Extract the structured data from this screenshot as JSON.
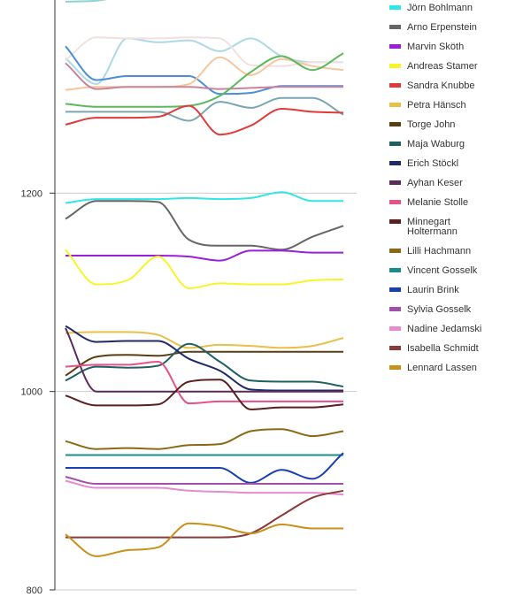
{
  "chart_data": {
    "type": "line",
    "title": "",
    "xlabel": "",
    "ylabel": "",
    "x": [
      0,
      1,
      2,
      3,
      4,
      5,
      6,
      7,
      8,
      9
    ],
    "ylim": [
      800,
      1400
    ],
    "yticks": [
      800,
      1000,
      1200
    ],
    "grid": true,
    "legend_position": "right",
    "smooth": true,
    "series": [
      {
        "name": "",
        "color": "#8fd3d3",
        "values": [
          1393,
          1394,
          1398,
          1397,
          1399,
          1400,
          1400,
          1401,
          1400,
          1400
        ]
      },
      {
        "name": "",
        "color": "#add8e6",
        "values": [
          1336,
          1310,
          1356,
          1352,
          1354,
          1343,
          1356,
          1338,
          1332,
          1332
        ]
      },
      {
        "name": "",
        "color": "#f0e0e0",
        "values": [
          1334,
          1357,
          1356,
          1356,
          1357,
          1356,
          1329,
          1328,
          1332,
          1332
        ]
      },
      {
        "name": "",
        "color": "#4a8fd6",
        "values": [
          1348,
          1314,
          1318,
          1318,
          1318,
          1300,
          1301,
          1308,
          1308,
          1308
        ]
      },
      {
        "name": "",
        "color": "#f5c6a0",
        "values": [
          1304,
          1307,
          1307,
          1307,
          1310,
          1337,
          1319,
          1335,
          1328,
          1324
        ]
      },
      {
        "name": "",
        "color": "#c9839b",
        "values": [
          1331,
          1305,
          1307,
          1307,
          1307,
          1305,
          1306,
          1307,
          1307,
          1307
        ]
      },
      {
        "name": "",
        "color": "#5cb85c",
        "values": [
          1290,
          1287,
          1287,
          1287,
          1288,
          1298,
          1322,
          1338,
          1324,
          1341
        ]
      },
      {
        "name": "",
        "color": "#7aa6b0",
        "values": [
          1282,
          1282,
          1282,
          1282,
          1273,
          1292,
          1286,
          1296,
          1296,
          1279
        ]
      },
      {
        "name": "Jörn Bohlmann",
        "color": "#33e6e6",
        "values": [
          1190,
          1194,
          1194,
          1194,
          1195,
          1194,
          1195,
          1201,
          1192,
          1192
        ]
      },
      {
        "name": "Arno Erpenstein",
        "color": "#666666",
        "values": [
          1174,
          1192,
          1192,
          1191,
          1153,
          1147,
          1147,
          1143,
          1156,
          1167
        ]
      },
      {
        "name": "Marvin Sköth",
        "color": "#9b1fd9",
        "values": [
          1137,
          1137,
          1137,
          1137,
          1136,
          1132,
          1142,
          1142,
          1140,
          1140
        ]
      },
      {
        "name": "Andreas Stamer",
        "color": "#f5f52a",
        "values": [
          1143,
          1108,
          1112,
          1136,
          1104,
          1109,
          1108,
          1108,
          1112,
          1113
        ]
      },
      {
        "name": "Sandra Knubbe",
        "color": "#e03a3a",
        "values": [
          1269,
          1276,
          1276,
          1277,
          1288,
          1259,
          1268,
          1285,
          1282,
          1281
        ]
      },
      {
        "name": "Petra Hänsch",
        "color": "#e8c048",
        "values": [
          1059,
          1060,
          1060,
          1057,
          1044,
          1047,
          1046,
          1044,
          1046,
          1054
        ]
      },
      {
        "name": "Torge John",
        "color": "#5a3d10",
        "values": [
          1016,
          1035,
          1037,
          1036,
          1040,
          1040,
          1040,
          1040,
          1040,
          1040
        ]
      },
      {
        "name": "Maja Waburg",
        "color": "#1f6060",
        "values": [
          1011,
          1025,
          1024,
          1026,
          1048,
          1030,
          1011,
          1010,
          1010,
          1005
        ]
      },
      {
        "name": "Erich Stöckl",
        "color": "#1f2a6b",
        "values": [
          1066,
          1050,
          1051,
          1051,
          1033,
          1021,
          1002,
          1001,
          1001,
          1001
        ]
      },
      {
        "name": "Ayhan Keser",
        "color": "#5a2a5a",
        "values": [
          1064,
          1000,
          1000,
          1000,
          1000,
          1000,
          1000,
          1000,
          1000,
          1000
        ]
      },
      {
        "name": "Melanie Stolle",
        "color": "#e8508a",
        "values": [
          1025,
          1027,
          1027,
          1030,
          988,
          990,
          990,
          990,
          990,
          990
        ]
      },
      {
        "name": "Minnegart Holtermann",
        "color": "#5a1f1f",
        "values": [
          996,
          986,
          986,
          987,
          1010,
          1012,
          982,
          984,
          984,
          987
        ]
      },
      {
        "name": "Lilli Hachmann",
        "color": "#8b6914",
        "values": [
          950,
          942,
          943,
          942,
          946,
          947,
          960,
          962,
          955,
          960
        ]
      },
      {
        "name": "Vincent Gosselk",
        "color": "#1a8c8c",
        "values": [
          936,
          936,
          936,
          936,
          936,
          936,
          936,
          936,
          936,
          936
        ]
      },
      {
        "name": "Laurin Brink",
        "color": "#1a3fb0",
        "values": [
          923,
          923,
          923,
          923,
          923,
          923,
          908,
          921,
          912,
          938
        ]
      },
      {
        "name": "Sylvia Gosselk",
        "color": "#a050a8",
        "values": [
          914,
          907,
          907,
          907,
          907,
          907,
          907,
          907,
          907,
          907
        ]
      },
      {
        "name": "Nadine Jedamski",
        "color": "#e88ad0",
        "values": [
          910,
          903,
          903,
          903,
          900,
          899,
          898,
          898,
          898,
          896
        ]
      },
      {
        "name": "Isabella Schmidt",
        "color": "#8b3a3a",
        "values": [
          853,
          853,
          853,
          853,
          853,
          853,
          857,
          875,
          893,
          900
        ]
      },
      {
        "name": "Lennard Lassen",
        "color": "#c8901a",
        "values": [
          856,
          834,
          840,
          843,
          867,
          864,
          857,
          866,
          862,
          862
        ]
      }
    ]
  }
}
